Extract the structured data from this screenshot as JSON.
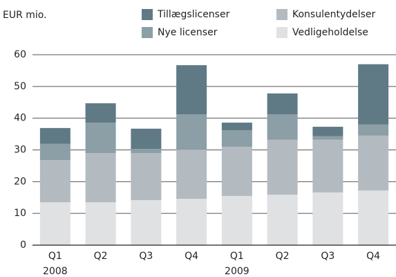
{
  "chart_data": {
    "type": "stacked_bar",
    "ylabel": "EUR mio.",
    "categories": [
      "Q1",
      "Q2",
      "Q3",
      "Q4",
      "Q1",
      "Q2",
      "Q3",
      "Q4"
    ],
    "group_labels": [
      "2008",
      null,
      null,
      null,
      "2009",
      null,
      null,
      null
    ],
    "series": [
      {
        "name": "Vedligeholdelse",
        "color": "#dfe1e3",
        "values": [
          13.5,
          13.5,
          14.2,
          14.6,
          15.5,
          15.9,
          16.6,
          17.2
        ]
      },
      {
        "name": "Konsulentydelser",
        "color": "#b3bbc0",
        "values": [
          13.3,
          15.5,
          14.8,
          15.5,
          15.5,
          17.3,
          16.6,
          17.3
        ]
      },
      {
        "name": "Nye licenser",
        "color": "#8c9ea6",
        "values": [
          5.1,
          9.6,
          1.3,
          11.1,
          5.2,
          8.0,
          1.1,
          3.5
        ]
      },
      {
        "name": "Tillægslicenser",
        "color": "#5f7a85",
        "values": [
          5.0,
          6.1,
          6.4,
          15.5,
          2.4,
          6.6,
          3.0,
          19.0
        ]
      }
    ],
    "ylim": [
      0,
      60
    ],
    "yticks": [
      0,
      10,
      20,
      30,
      40,
      50,
      60
    ],
    "grid": true
  }
}
